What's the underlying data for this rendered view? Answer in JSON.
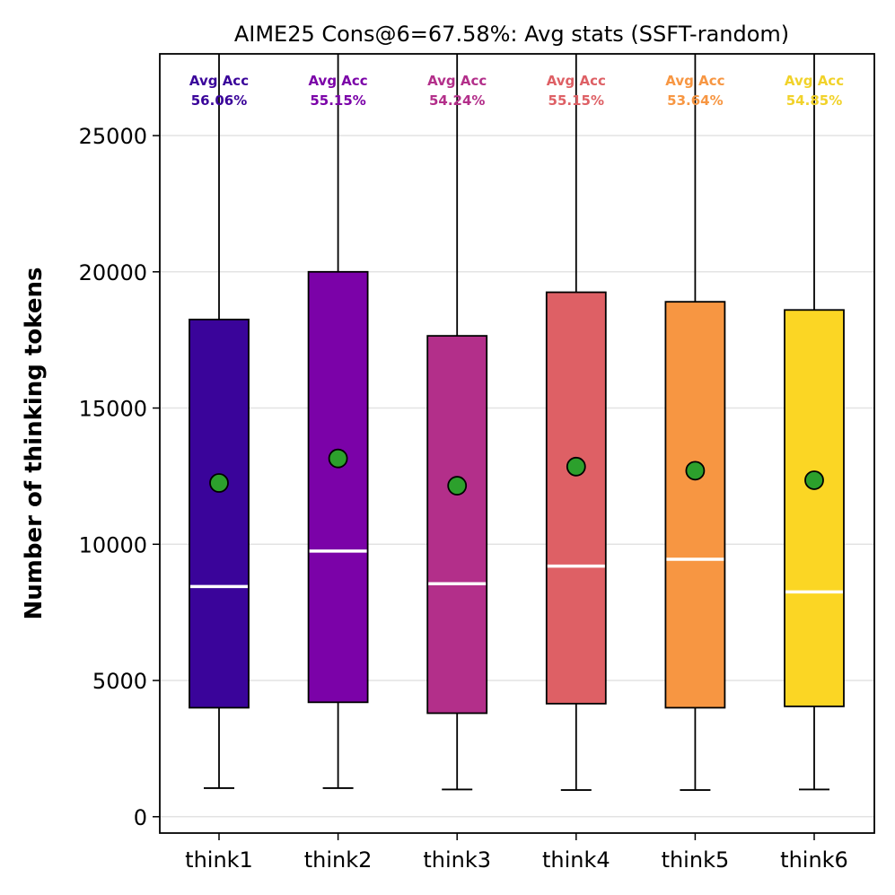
{
  "chart_data": {
    "type": "box",
    "title": "AIME25 Cons@6=67.58%: Avg stats (SSFT-random)",
    "xlabel": "",
    "ylabel": "Number of thinking tokens",
    "ylim": [
      -600,
      28000
    ],
    "yticks": [
      0,
      5000,
      10000,
      15000,
      20000,
      25000
    ],
    "ytick_labels": [
      "0",
      "5000",
      "10000",
      "15000",
      "20000",
      "25000"
    ],
    "grid": "horizontal",
    "acc_prefix": "Avg Acc",
    "categories": [
      "think1",
      "think2",
      "think3",
      "think4",
      "think5",
      "think6"
    ],
    "series": [
      {
        "name": "think1",
        "color": "#3a049a",
        "acc_color": "#3a049a",
        "whisker_low": 1050,
        "q1": 4000,
        "median": 8450,
        "q3": 18250,
        "whisker_high": 28000,
        "mean": 12250,
        "avg_acc": "56.06%"
      },
      {
        "name": "think2",
        "color": "#7b02a8",
        "acc_color": "#7b02a8",
        "whisker_low": 1050,
        "q1": 4200,
        "median": 9750,
        "q3": 20000,
        "whisker_high": 28000,
        "mean": 13150,
        "avg_acc": "55.15%"
      },
      {
        "name": "think3",
        "color": "#b32f8a",
        "acc_color": "#b32f8a",
        "whisker_low": 1000,
        "q1": 3800,
        "median": 8550,
        "q3": 17650,
        "whisker_high": 28000,
        "mean": 12150,
        "avg_acc": "54.24%"
      },
      {
        "name": "think4",
        "color": "#de6065",
        "acc_color": "#de6065",
        "whisker_low": 980,
        "q1": 4150,
        "median": 9200,
        "q3": 19250,
        "whisker_high": 28000,
        "mean": 12850,
        "avg_acc": "55.15%"
      },
      {
        "name": "think5",
        "color": "#f79642",
        "acc_color": "#f79642",
        "whisker_low": 980,
        "q1": 4000,
        "median": 9450,
        "q3": 18900,
        "whisker_high": 28000,
        "mean": 12700,
        "avg_acc": "53.64%"
      },
      {
        "name": "think6",
        "color": "#fbd624",
        "acc_color": "#f1d22a",
        "whisker_low": 1000,
        "q1": 4050,
        "median": 8250,
        "q3": 18600,
        "whisker_high": 28000,
        "mean": 12350,
        "avg_acc": "54.85%"
      }
    ],
    "median_color": "#ffffff",
    "mean_marker_color": "#2ca02c"
  }
}
